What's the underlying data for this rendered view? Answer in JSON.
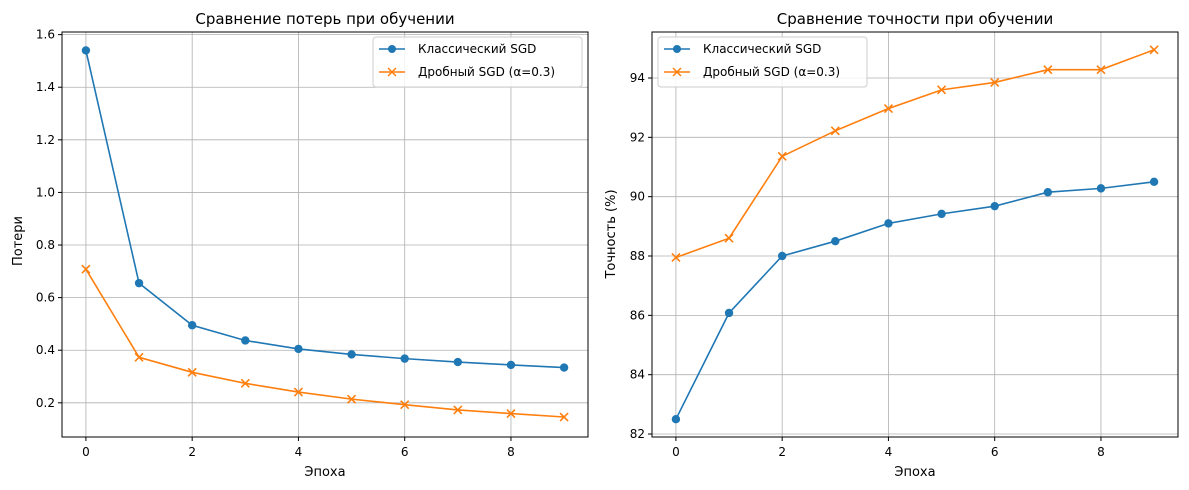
{
  "chart_data": [
    {
      "type": "line",
      "title": "Сравнение потерь при обучении",
      "xlabel": "Эпоха",
      "ylabel": "Потери",
      "xlim": [
        -0.45,
        9.45
      ],
      "ylim": [
        0.07,
        1.61
      ],
      "xticks": [
        0,
        2,
        4,
        6,
        8
      ],
      "yticks": [
        0.2,
        0.4,
        0.6,
        0.8,
        1.0,
        1.2,
        1.4,
        1.6
      ],
      "ytick_labels": [
        "0.2",
        "0.4",
        "0.6",
        "0.8",
        "1.0",
        "1.2",
        "1.4",
        "1.6"
      ],
      "grid": true,
      "legend": "top-right",
      "x": [
        0,
        1,
        2,
        3,
        4,
        5,
        6,
        7,
        8,
        9
      ],
      "series": [
        {
          "name": "Классический SGD",
          "color": "#1f77b4",
          "marker": "circle",
          "values": [
            1.54,
            0.655,
            0.495,
            0.437,
            0.405,
            0.384,
            0.368,
            0.355,
            0.344,
            0.334
          ]
        },
        {
          "name": "Дробный SGD (α=0.3)",
          "color": "#ff7f0e",
          "marker": "x",
          "values": [
            0.708,
            0.373,
            0.316,
            0.274,
            0.241,
            0.214,
            0.193,
            0.173,
            0.159,
            0.146
          ]
        }
      ]
    },
    {
      "type": "line",
      "title": "Сравнение точности при обучении",
      "xlabel": "Эпоха",
      "ylabel": "Точность (%)",
      "xlim": [
        -0.45,
        9.45
      ],
      "ylim": [
        81.9,
        95.55
      ],
      "xticks": [
        0,
        2,
        4,
        6,
        8
      ],
      "yticks": [
        82,
        84,
        86,
        88,
        90,
        92,
        94
      ],
      "ytick_labels": [
        "82",
        "84",
        "86",
        "88",
        "90",
        "92",
        "94"
      ],
      "grid": true,
      "legend": "top-left",
      "x": [
        0,
        1,
        2,
        3,
        4,
        5,
        6,
        7,
        8,
        9
      ],
      "series": [
        {
          "name": "Классический SGD",
          "color": "#1f77b4",
          "marker": "circle",
          "values": [
            82.5,
            86.08,
            88.0,
            88.5,
            89.1,
            89.42,
            89.68,
            90.15,
            90.28,
            90.5
          ]
        },
        {
          "name": "Дробный SGD (α=0.3)",
          "color": "#ff7f0e",
          "marker": "x",
          "values": [
            87.95,
            88.6,
            91.36,
            92.22,
            92.97,
            93.6,
            93.85,
            94.28,
            94.28,
            94.95
          ]
        }
      ]
    }
  ]
}
